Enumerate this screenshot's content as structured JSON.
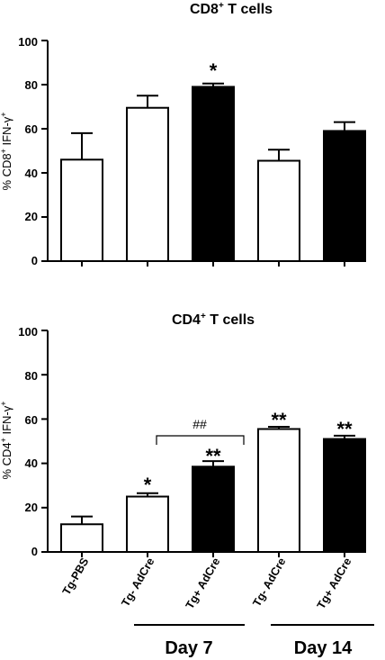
{
  "chart_data": [
    {
      "type": "bar",
      "title": "CD8",
      "title_sup": "+",
      "title_rest": " T cells",
      "ylabel": "% CD8",
      "ylabel_sup1": "+",
      "ylabel_mid": " IFN-γ",
      "ylabel_sup2": "+",
      "ylim": [
        0,
        100
      ],
      "yticks": [
        "0",
        "20",
        "40",
        "60",
        "80",
        "100"
      ],
      "series": [
        {
          "values": [
            46,
            69.5,
            79,
            45.5,
            59
          ],
          "errors": [
            12,
            5.5,
            1.5,
            5,
            4
          ],
          "fills": [
            "#ffffff",
            "#ffffff",
            "#000000",
            "#ffffff",
            "#000000"
          ]
        }
      ],
      "annotations": [
        "",
        "",
        "*",
        "",
        ""
      ]
    },
    {
      "type": "bar",
      "title": "CD4",
      "title_sup": "+",
      "title_rest": " T cells",
      "ylabel": "% CD4",
      "ylabel_sup1": "+",
      "ylabel_mid": " IFN-γ",
      "ylabel_sup2": "+",
      "ylim": [
        0,
        100
      ],
      "yticks": [
        "0",
        "20",
        "40",
        "60",
        "80",
        "100"
      ],
      "categories": [
        "Tg-PBS",
        "Tg- AdCre",
        "Tg+ AdCre",
        "Tg- AdCre",
        "Tg+ AdCre"
      ],
      "series": [
        {
          "values": [
            12.5,
            25,
            38.5,
            55.5,
            51
          ],
          "errors": [
            3.5,
            1.5,
            2.5,
            1,
            1.5
          ],
          "fills": [
            "#ffffff",
            "#ffffff",
            "#000000",
            "#ffffff",
            "#000000"
          ]
        }
      ],
      "annotations": [
        "",
        "*",
        "**",
        "**",
        "**"
      ],
      "bracket_label": "##"
    }
  ],
  "groups": [
    "Day 7",
    "Day 14"
  ]
}
